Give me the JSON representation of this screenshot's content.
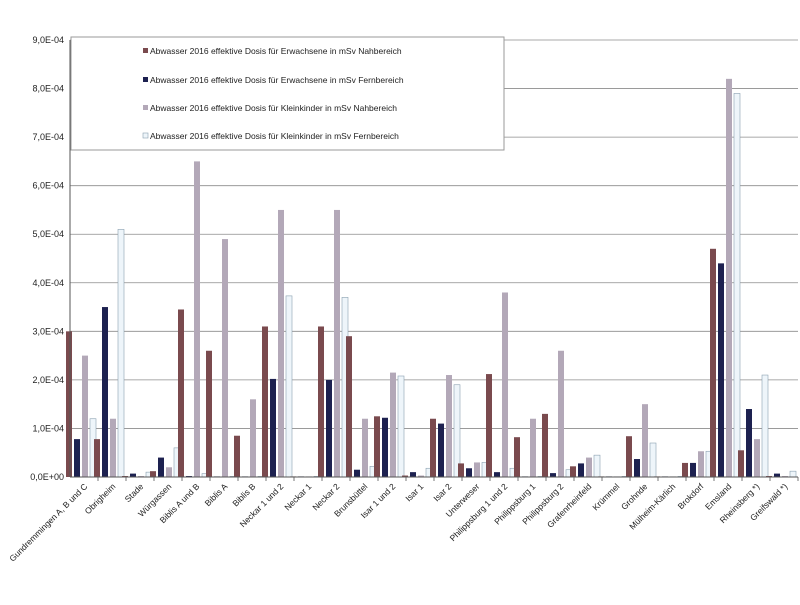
{
  "chart_data": {
    "type": "bar",
    "title": "",
    "xlabel": "",
    "ylabel": "",
    "ylim": [
      0,
      0.0009
    ],
    "yticks": [
      "0,0E+00",
      "1,0E-04",
      "2,0E-04",
      "3,0E-04",
      "4,0E-04",
      "5,0E-04",
      "6,0E-04",
      "7,0E-04",
      "8,0E-04",
      "9,0E-04"
    ],
    "grid": true,
    "legend_position": "top-left",
    "categories": [
      "Gundremmingen A, B und C",
      "Obrigheim",
      "Stade",
      "Würgassen",
      "Biblis A und B",
      "Biblis A",
      "Biblis B",
      "Neckar 1 und 2",
      "Neckar 1",
      "Neckar 2",
      "Brunsbüttel",
      "Isar 1 und 2",
      "Isar 1",
      "Isar 2",
      "Unterweser",
      "Philippsburg 1 und 2",
      "Philippsburg 1",
      "Philippsburg 2",
      "Grafenrheinfeld",
      "Krümmel",
      "Grohnde",
      "Mülheim-Kärlich",
      "Brokdorf",
      "Emsland",
      "Rheinsberg *)",
      "Greifswald *)"
    ],
    "series": [
      {
        "name": "Abwasser 2016  effektive Dosis für Erwachsene in mSv Nahbereich",
        "color": "#7a4a4e",
        "values": [
          0.0003,
          7.8e-05,
          2e-06,
          1.2e-05,
          0.000345,
          0.00026,
          8.5e-05,
          0.00031,
          1e-06,
          0.00031,
          0.00029,
          0.000125,
          3e-06,
          0.00012,
          2.8e-05,
          0.000212,
          8.2e-05,
          0.00013,
          2.2e-05,
          1e-06,
          8.4e-05,
          1e-06,
          2.9e-05,
          0.00047,
          5.5e-05,
          2e-06
        ]
      },
      {
        "name": "Abwasser 2016  effektive Dosis für Erwachsene in mSv Fernbereich",
        "color": "#1d2150",
        "values": [
          7.8e-05,
          0.00035,
          7e-06,
          4e-05,
          2e-06,
          1e-06,
          1e-06,
          0.000202,
          1e-06,
          0.0002,
          1.5e-05,
          0.000122,
          1e-05,
          0.00011,
          1.8e-05,
          1e-05,
          1e-06,
          8e-06,
          2.8e-05,
          1e-06,
          3.7e-05,
          1e-06,
          2.9e-05,
          0.00044,
          0.00014,
          7e-06
        ]
      },
      {
        "name": "Abwasser 2016 effektive Dosis für Kleinkinder in mSv Nahbereich",
        "color": "#b3a8b8",
        "values": [
          0.00025,
          0.00012,
          2e-06,
          2e-05,
          0.00065,
          0.00049,
          0.00016,
          0.00055,
          1e-06,
          0.00055,
          0.00012,
          0.000215,
          3e-06,
          0.00021,
          3e-05,
          0.00038,
          0.00012,
          0.00026,
          4e-05,
          1e-06,
          0.00015,
          1e-06,
          5.3e-05,
          0.00082,
          7.8e-05,
          2e-06
        ]
      },
      {
        "name": "Abwasser 2016 effektive Dosis für Kleinkinder in mSv Fernbereich",
        "color": "#eef5fa",
        "values": [
          0.00012,
          0.00051,
          1e-05,
          6e-05,
          7e-06,
          1e-06,
          1e-06,
          0.000373,
          1e-06,
          0.00037,
          2.2e-05,
          0.000208,
          1.8e-05,
          0.00019,
          3e-05,
          1.8e-05,
          1e-06,
          1.5e-05,
          4.5e-05,
          1e-06,
          7e-05,
          1e-06,
          5.3e-05,
          0.00079,
          0.00021,
          1.2e-05
        ]
      }
    ]
  }
}
